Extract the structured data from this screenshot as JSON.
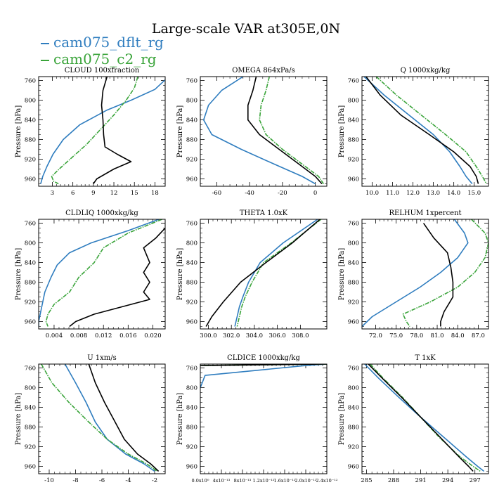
{
  "title": "Large-scale VAR at305E,0N",
  "legend": [
    {
      "label": "cam075_dflt_rg",
      "color": "#2f7dbf"
    },
    {
      "label": "cam075_c2_rg",
      "color": "#3aa43a"
    }
  ],
  "black_series_color": "#000000",
  "chart_data": [
    {
      "type": "line",
      "title": "CLOUD  100xfraction",
      "ylabel": "Pressure [hPa]",
      "ylim": [
        975,
        752
      ],
      "yticks": [
        760,
        800,
        840,
        880,
        920,
        960
      ],
      "xlim": [
        1,
        19.5
      ],
      "xticks": [
        3,
        6,
        9,
        12,
        15,
        18
      ],
      "xticklabels": [
        "3",
        "6",
        "9",
        "12",
        "15",
        "18"
      ],
      "series": [
        {
          "name": "cam075_dflt_rg",
          "p": [
            752,
            778,
            800,
            820,
            850,
            880,
            910,
            935,
            955,
            970
          ],
          "x": [
            20,
            18,
            14.5,
            11,
            7,
            4.6,
            3.1,
            2.2,
            1.6,
            1.3
          ]
        },
        {
          "name": "cam075_c2_rg",
          "p": [
            752,
            775,
            800,
            830,
            860,
            890,
            915,
            940,
            955,
            965,
            970
          ],
          "x": [
            15.5,
            15,
            13.8,
            12,
            10,
            8,
            6,
            4,
            2.9,
            3.2,
            3.9
          ]
        },
        {
          "name": "black",
          "p": [
            752,
            780,
            810,
            840,
            870,
            895,
            910,
            925,
            940,
            960,
            970
          ],
          "x": [
            11,
            10.4,
            10.2,
            10.4,
            10.5,
            10.7,
            12.5,
            14.5,
            12,
            9.5,
            9
          ]
        }
      ]
    },
    {
      "type": "line",
      "title": "OMEGA  864xPa/s",
      "ylabel": "Pressure [hPa]",
      "ylim": [
        975,
        752
      ],
      "yticks": [
        760,
        800,
        840,
        880,
        920,
        960
      ],
      "xlim": [
        -70,
        7
      ],
      "xticks": [
        -60,
        -40,
        -20,
        0
      ],
      "xticklabels": [
        "-60",
        "-40",
        "-20",
        "0"
      ],
      "series": [
        {
          "name": "cam075_dflt_rg",
          "p": [
            752,
            780,
            810,
            840,
            870,
            900,
            930,
            955,
            970
          ],
          "x": [
            -44,
            -57,
            -65,
            -68,
            -63,
            -45,
            -25,
            -8,
            0
          ]
        },
        {
          "name": "cam075_c2_rg",
          "p": [
            752,
            780,
            810,
            840,
            870,
            900,
            930,
            955,
            970
          ],
          "x": [
            -28,
            -30,
            -33,
            -34,
            -30,
            -20,
            -8,
            2,
            5
          ]
        },
        {
          "name": "black",
          "p": [
            752,
            780,
            810,
            840,
            870,
            900,
            930,
            955,
            970
          ],
          "x": [
            -36,
            -38,
            -41,
            -41,
            -34,
            -22,
            -10,
            0,
            4
          ]
        }
      ]
    },
    {
      "type": "line",
      "title": "Q  1000xkg/kg",
      "ylabel": "Pressure [hPa]",
      "ylim": [
        975,
        752
      ],
      "yticks": [
        760,
        800,
        840,
        880,
        920,
        960
      ],
      "xlim": [
        9.5,
        15.7
      ],
      "xticks": [
        10,
        11,
        12,
        13,
        14,
        15
      ],
      "xticklabels": [
        "10.0",
        "11.0",
        "12.0",
        "13.0",
        "14.0",
        "15.0"
      ],
      "series": [
        {
          "name": "cam075_dflt_rg",
          "p": [
            752,
            790,
            830,
            870,
            905,
            935,
            955,
            970
          ],
          "x": [
            9.6,
            10.6,
            11.8,
            13.0,
            13.8,
            14.3,
            14.6,
            14.9
          ]
        },
        {
          "name": "cam075_c2_rg",
          "p": [
            752,
            790,
            830,
            870,
            905,
            935,
            955,
            970
          ],
          "x": [
            10.2,
            11.2,
            12.4,
            13.6,
            14.6,
            15.1,
            15.4,
            15.6
          ]
        },
        {
          "name": "black",
          "p": [
            752,
            790,
            830,
            870,
            905,
            935,
            955,
            970
          ],
          "x": [
            9.7,
            10.4,
            11.4,
            12.8,
            14.0,
            14.8,
            15.1,
            15.2
          ]
        }
      ]
    },
    {
      "type": "line",
      "title": "CLDLIQ  1000xkg/kg",
      "ylabel": "Pressure [hPa]",
      "ylim": [
        975,
        752
      ],
      "yticks": [
        760,
        800,
        840,
        880,
        920,
        960
      ],
      "xlim": [
        0.0015,
        0.022
      ],
      "xticks": [
        0.004,
        0.008,
        0.012,
        0.016,
        0.02
      ],
      "xticklabels": [
        "0.004",
        "0.008",
        "0.012",
        "0.016",
        "0.020"
      ],
      "series": [
        {
          "name": "cam075_dflt_rg",
          "p": [
            752,
            775,
            800,
            820,
            845,
            870,
            900,
            930,
            960,
            970
          ],
          "x": [
            0.021,
            0.016,
            0.01,
            0.0065,
            0.0045,
            0.0035,
            0.0025,
            0.002,
            0.0015,
            0.0015
          ]
        },
        {
          "name": "cam075_c2_rg",
          "p": [
            752,
            780,
            810,
            840,
            870,
            900,
            925,
            945,
            960,
            970
          ],
          "x": [
            0.0215,
            0.016,
            0.012,
            0.0105,
            0.008,
            0.0065,
            0.004,
            0.003,
            0.0027,
            0.003
          ]
        },
        {
          "name": "black",
          "p": [
            770,
            790,
            810,
            840,
            860,
            880,
            900,
            915,
            925,
            945,
            960,
            970
          ],
          "x": [
            0.022,
            0.0205,
            0.0185,
            0.0195,
            0.0185,
            0.0195,
            0.0185,
            0.0195,
            0.0165,
            0.0105,
            0.0075,
            0.0065
          ]
        }
      ]
    },
    {
      "type": "line",
      "title": "THETA  1.0xK",
      "ylabel": "Pressure [hPa]",
      "ylim": [
        975,
        752
      ],
      "yticks": [
        760,
        800,
        840,
        880,
        920,
        960
      ],
      "xlim": [
        299.3,
        310.3
      ],
      "xticks": [
        300,
        302,
        304,
        306,
        308
      ],
      "xticklabels": [
        "300.0",
        "302.0",
        "304.0",
        "306.0",
        "308.0"
      ],
      "series": [
        {
          "name": "cam075_dflt_rg",
          "p": [
            752,
            800,
            840,
            880,
            910,
            930,
            950,
            970
          ],
          "x": [
            309.5,
            306.5,
            304.5,
            303.5,
            303.0,
            302.7,
            302.5,
            302.3
          ]
        },
        {
          "name": "cam075_c2_rg",
          "p": [
            752,
            800,
            840,
            880,
            910,
            930,
            950,
            970
          ],
          "x": [
            309.8,
            307.2,
            304.8,
            303.8,
            303.2,
            302.9,
            302.7,
            302.5
          ]
        },
        {
          "name": "black",
          "p": [
            752,
            800,
            840,
            880,
            920,
            950,
            970
          ],
          "x": [
            309.7,
            307.3,
            305.0,
            302.8,
            301.3,
            300.3,
            299.8
          ]
        }
      ]
    },
    {
      "type": "line",
      "title": "RELHUM  1xpercent",
      "ylabel": "Pressure [hPa]",
      "ylim": [
        975,
        752
      ],
      "yticks": [
        760,
        800,
        840,
        880,
        920,
        960
      ],
      "xlim": [
        70,
        88.5
      ],
      "xticks": [
        72,
        75,
        78,
        81,
        84,
        87
      ],
      "xticklabels": [
        "72.0",
        "75.0",
        "78.0",
        "81.0",
        "84.0",
        "87.0"
      ],
      "series": [
        {
          "name": "cam075_dflt_rg",
          "p": [
            752,
            780,
            800,
            830,
            860,
            890,
            920,
            950,
            970
          ],
          "x": [
            83.5,
            85,
            85.5,
            84,
            81.5,
            78.5,
            75,
            71.5,
            70
          ]
        },
        {
          "name": "cam075_c2_rg",
          "p": [
            752,
            780,
            800,
            830,
            860,
            890,
            920,
            945,
            960,
            970
          ],
          "x": [
            86,
            88,
            88.5,
            88,
            86.5,
            84,
            80,
            76,
            76.5,
            77
          ]
        },
        {
          "name": "black",
          "p": [
            760,
            790,
            820,
            850,
            880,
            910,
            940,
            960,
            970
          ],
          "x": [
            79,
            80.5,
            82.5,
            83,
            83.3,
            83.3,
            82,
            81.5,
            81.5
          ]
        }
      ]
    },
    {
      "type": "line",
      "title": "U  1xm/s",
      "ylabel": "Pressure [hPa]",
      "ylim": [
        975,
        752
      ],
      "yticks": [
        760,
        800,
        840,
        880,
        920,
        960
      ],
      "xlim": [
        -10.8,
        -1.2
      ],
      "xticks": [
        -10,
        -8,
        -6,
        -4,
        -2
      ],
      "xticklabels": [
        "-10",
        "-8",
        "-6",
        "-4",
        "-2"
      ],
      "series": [
        {
          "name": "cam075_dflt_rg",
          "p": [
            752,
            790,
            830,
            870,
            905,
            935,
            955,
            970
          ],
          "x": [
            -8.8,
            -8.0,
            -7.2,
            -6.5,
            -5.6,
            -4.2,
            -2.8,
            -2.0
          ]
        },
        {
          "name": "cam075_c2_rg",
          "p": [
            752,
            790,
            830,
            870,
            905,
            935,
            955,
            970
          ],
          "x": [
            -10.6,
            -9.8,
            -8.5,
            -7.0,
            -5.6,
            -4.0,
            -2.6,
            -1.8
          ]
        },
        {
          "name": "black",
          "p": [
            752,
            790,
            830,
            870,
            905,
            935,
            955,
            970
          ],
          "x": [
            -7.0,
            -6.5,
            -5.8,
            -5.0,
            -4.3,
            -3.3,
            -2.3,
            -1.7
          ]
        }
      ]
    },
    {
      "type": "line",
      "title": "CLDICE  1000xkg/kg",
      "ylabel": "Pressure [hPa]",
      "ylim": [
        975,
        752
      ],
      "yticks": [
        760,
        800,
        840,
        880,
        920,
        960
      ],
      "xlim": [
        0,
        2.4e-12
      ],
      "xticks": [
        0,
        4e-13,
        8e-13,
        1.2e-12,
        1.6e-12,
        2e-12,
        2.4e-12
      ],
      "xticklabels": [
        "0.0x10⁰",
        "4x10⁻¹³",
        "8x10⁻¹³",
        "1.2x10⁻¹²",
        "1.6x10⁻¹²",
        "2.0x10⁻¹²",
        "2.4x10⁻¹²"
      ],
      "series": [
        {
          "name": "cam075_dflt_rg",
          "p": [
            752,
            755,
            775,
            800
          ],
          "x": [
            2.4e-12,
            2e-12,
            9e-14,
            0
          ]
        },
        {
          "name": "cam075_c2_rg",
          "p": [
            752,
            755
          ],
          "x": [
            2.4e-12,
            0
          ]
        },
        {
          "name": "black",
          "p": [
            752,
            755
          ],
          "x": [
            2.4e-12,
            0
          ]
        }
      ]
    },
    {
      "type": "line",
      "title": "T  1xK",
      "ylabel": "Pressure [hPa]",
      "ylim": [
        975,
        752
      ],
      "yticks": [
        760,
        800,
        840,
        880,
        920,
        960
      ],
      "xlim": [
        284.5,
        298.5
      ],
      "xticks": [
        285,
        288,
        291,
        294,
        297
      ],
      "xticklabels": [
        "285",
        "288",
        "291",
        "294",
        "297"
      ],
      "series": [
        {
          "name": "cam075_dflt_rg",
          "p": [
            752,
            780,
            820,
            860,
            900,
            940,
            960,
            970
          ],
          "x": [
            284.8,
            286.3,
            288.6,
            291.0,
            293.5,
            296.0,
            297.3,
            298.0
          ]
        },
        {
          "name": "cam075_c2_rg",
          "p": [
            752,
            780,
            820,
            860,
            900,
            940,
            960,
            970
          ],
          "x": [
            285.4,
            286.8,
            289.0,
            291.0,
            293.0,
            295.3,
            296.8,
            297.6
          ]
        },
        {
          "name": "black",
          "p": [
            752,
            780,
            820,
            860,
            900,
            940,
            960,
            970
          ],
          "x": [
            285.2,
            286.7,
            288.9,
            291.0,
            293.1,
            295.2,
            296.3,
            296.8
          ]
        }
      ]
    }
  ]
}
